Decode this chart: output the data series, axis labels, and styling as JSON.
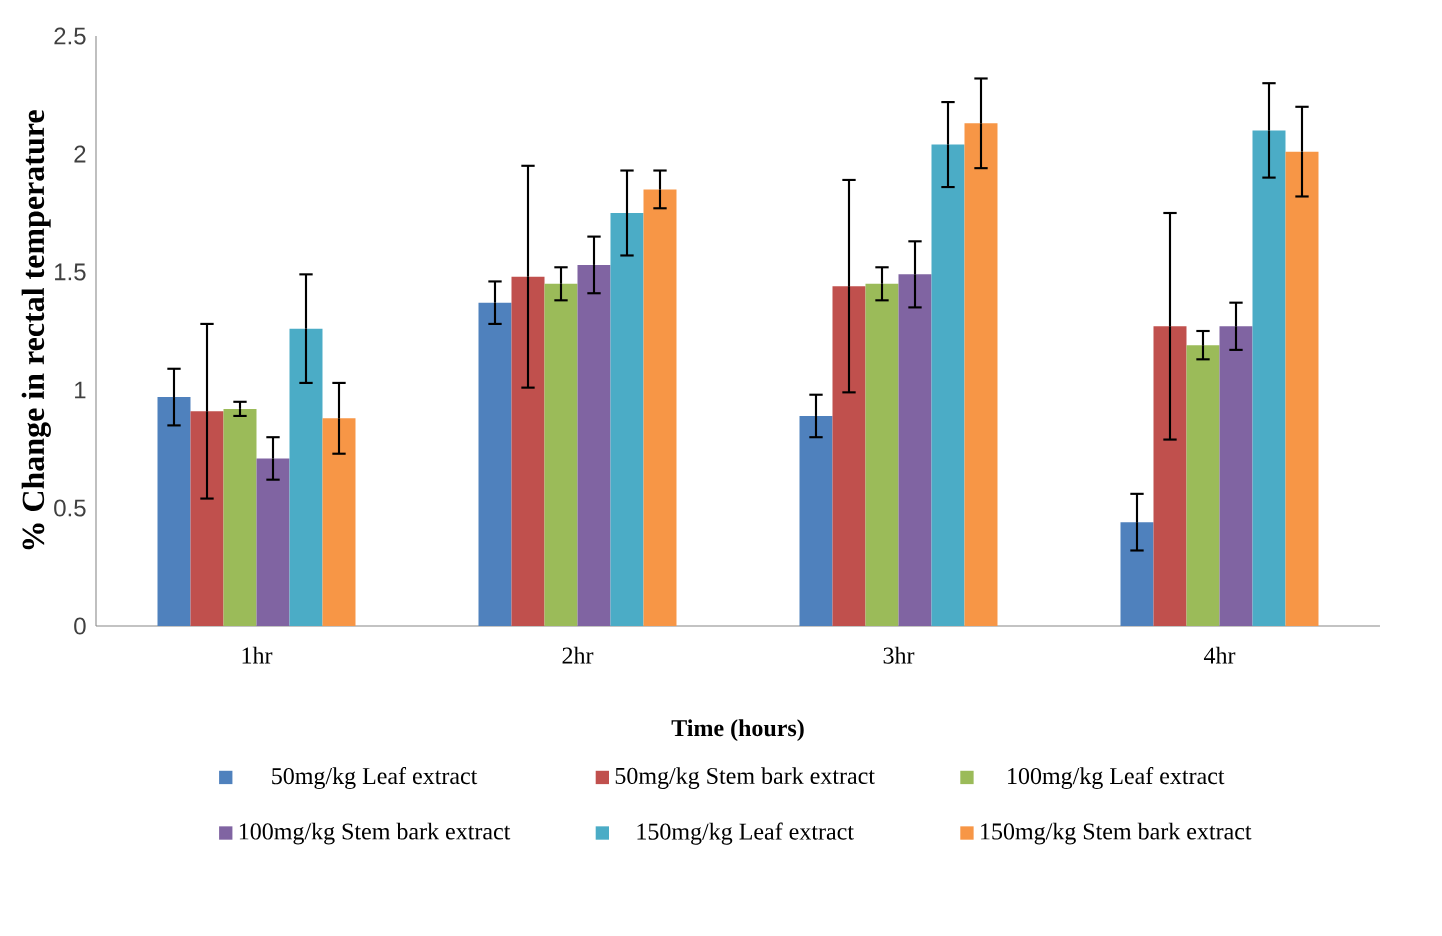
{
  "chart_data": {
    "type": "bar",
    "xlabel": "Time (hours)",
    "ylabel": "% Change in rectal temperature",
    "categories": [
      "1hr",
      "2hr",
      "3hr",
      "4hr"
    ],
    "ylim": [
      0,
      2.5
    ],
    "yticks": [
      0,
      0.5,
      1,
      1.5,
      2,
      2.5
    ],
    "grid": false,
    "legend": "bottom",
    "series": [
      {
        "name": "50mg/kg Leaf extract",
        "color": "#4f81bd",
        "values": [
          0.97,
          1.37,
          0.89,
          0.44
        ],
        "errors": [
          0.12,
          0.09,
          0.09,
          0.12
        ]
      },
      {
        "name": "50mg/kg Stem bark extract",
        "color": "#c0504d",
        "values": [
          0.91,
          1.48,
          1.44,
          1.27
        ],
        "errors": [
          0.37,
          0.47,
          0.45,
          0.48
        ]
      },
      {
        "name": "100mg/kg Leaf extract",
        "color": "#9bbb59",
        "values": [
          0.92,
          1.45,
          1.45,
          1.19
        ],
        "errors": [
          0.03,
          0.07,
          0.07,
          0.06
        ]
      },
      {
        "name": "100mg/kg Stem bark extract",
        "color": "#8064a2",
        "values": [
          0.71,
          1.53,
          1.49,
          1.27
        ],
        "errors": [
          0.09,
          0.12,
          0.14,
          0.1
        ]
      },
      {
        "name": "150mg/kg Leaf extract",
        "color": "#4bacc6",
        "values": [
          1.26,
          1.75,
          2.04,
          2.1
        ],
        "errors": [
          0.23,
          0.18,
          0.18,
          0.2
        ]
      },
      {
        "name": "150mg/kg Stem  bark extract",
        "color": "#f79646",
        "values": [
          0.88,
          1.85,
          2.13,
          2.01
        ],
        "errors": [
          0.15,
          0.08,
          0.19,
          0.19
        ]
      }
    ]
  }
}
